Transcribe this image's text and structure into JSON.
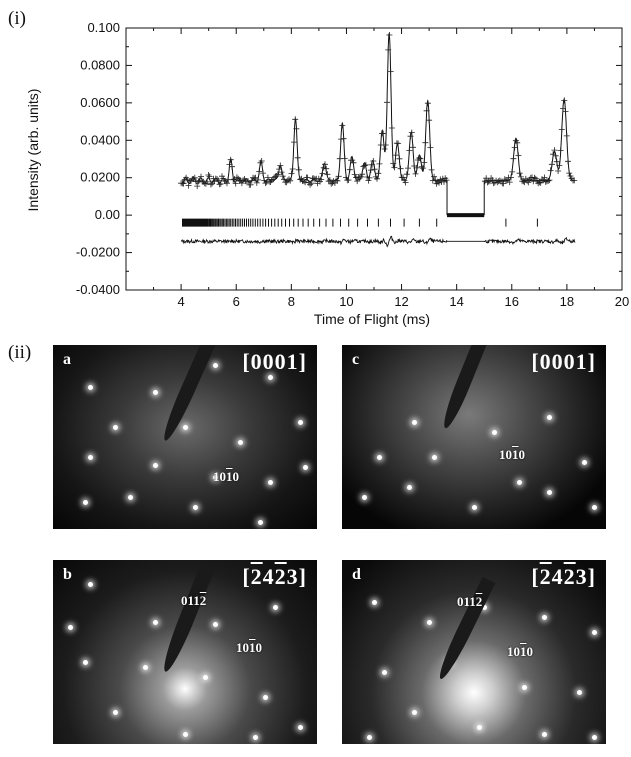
{
  "panel_labels": {
    "top": "(i)",
    "bottom": "(ii)"
  },
  "chart_data": {
    "type": "line",
    "xlabel": "Time of Flight (ms)",
    "ylabel": "Intensity (arb. units)",
    "xlim": [
      2,
      20
    ],
    "ylim": [
      -0.04,
      0.1
    ],
    "xticks": [
      "4",
      "6",
      "8",
      "10",
      "12",
      "14",
      "16",
      "18",
      "20"
    ],
    "yticks": [
      "-0.0400",
      "-0.0200",
      "0.00",
      "0.0200",
      "0.0400",
      "0.0600",
      "0.0800",
      "0.100"
    ],
    "background": 0.0185,
    "x_range_data": [
      4.0,
      18.3
    ],
    "excluded_region": [
      13.65,
      15.0
    ],
    "peaks": [
      {
        "x": 8.15,
        "y": 0.052
      },
      {
        "x": 9.85,
        "y": 0.049
      },
      {
        "x": 10.95,
        "y": 0.029
      },
      {
        "x": 11.3,
        "y": 0.045
      },
      {
        "x": 11.55,
        "y": 0.097
      },
      {
        "x": 11.85,
        "y": 0.038
      },
      {
        "x": 12.35,
        "y": 0.044
      },
      {
        "x": 12.65,
        "y": 0.032
      },
      {
        "x": 12.95,
        "y": 0.061
      },
      {
        "x": 16.15,
        "y": 0.041
      },
      {
        "x": 17.55,
        "y": 0.034
      },
      {
        "x": 17.9,
        "y": 0.062
      },
      {
        "x": 5.8,
        "y": 0.029
      },
      {
        "x": 6.9,
        "y": 0.028
      },
      {
        "x": 7.6,
        "y": 0.027
      },
      {
        "x": 9.2,
        "y": 0.028
      },
      {
        "x": 10.2,
        "y": 0.031
      },
      {
        "x": 10.65,
        "y": 0.028
      }
    ],
    "tick_row_y": -0.004,
    "difference_offset": -0.014,
    "series": [
      {
        "name": "",
        "style": "observed-cross"
      },
      {
        "name": "",
        "style": "calculated-line"
      },
      {
        "name": "",
        "style": "reflection-ticks"
      },
      {
        "name": "",
        "style": "difference"
      }
    ]
  },
  "diffraction_panels": [
    {
      "id": "a",
      "label": "a",
      "zone": "[0001]",
      "reflections": [
        {
          "text": "1010",
          "bar": 1
        }
      ]
    },
    {
      "id": "c",
      "label": "c",
      "zone": "[0001]",
      "reflections": [
        {
          "text": "1010",
          "bar": 1
        }
      ]
    },
    {
      "id": "b",
      "label": "b",
      "zone": "[2423]",
      "zone_bars": [
        0,
        2
      ],
      "reflections": [
        {
          "text": "0112",
          "bar": 2
        },
        {
          "text": "1010",
          "bar": 1
        }
      ]
    },
    {
      "id": "d",
      "label": "d",
      "zone": "[2423]",
      "zone_bars": [
        0,
        2
      ],
      "reflections": [
        {
          "text": "0112",
          "bar": 2
        },
        {
          "text": "1010",
          "bar": 1
        }
      ]
    }
  ]
}
